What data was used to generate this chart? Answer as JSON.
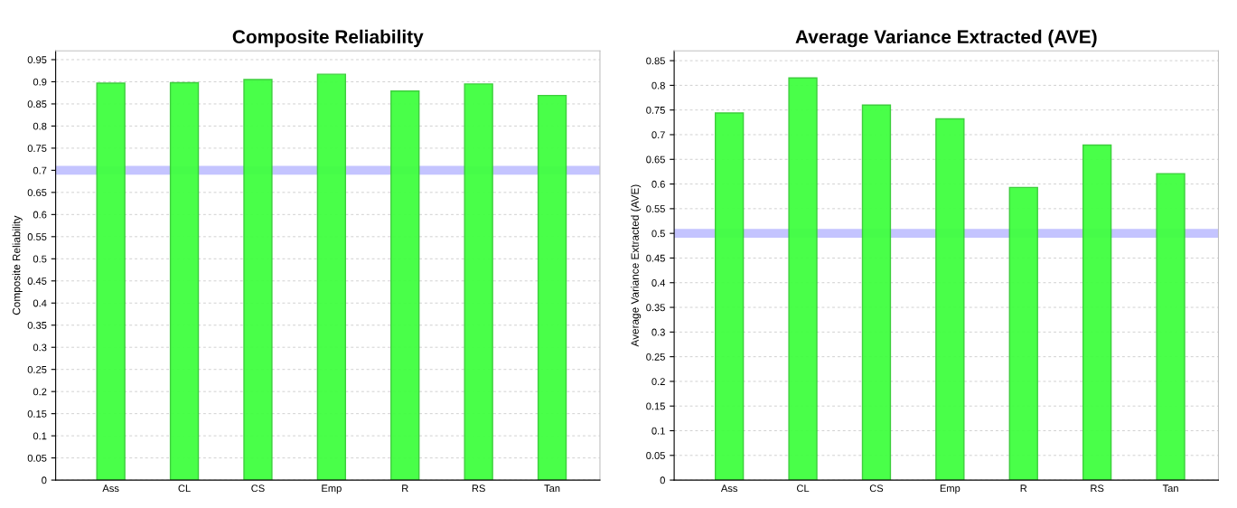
{
  "chart_data": [
    {
      "type": "bar",
      "title": "Composite Reliability",
      "ylabel": "Composite Reliability",
      "categories": [
        "Ass",
        "CL",
        "CS",
        "Emp",
        "R",
        "RS",
        "Tan"
      ],
      "values": [
        0.897,
        0.898,
        0.905,
        0.917,
        0.879,
        0.895,
        0.869
      ],
      "color": "#40ff40",
      "ylim": [
        0,
        0.97
      ],
      "yticks": [
        0,
        0.05,
        0.1,
        0.15,
        0.2,
        0.25,
        0.3,
        0.35,
        0.4,
        0.45,
        0.5,
        0.55,
        0.6,
        0.65,
        0.7,
        0.75,
        0.8,
        0.85,
        0.9,
        0.95
      ],
      "ref_lines": [
        {
          "axis": "y",
          "value": 0.7,
          "color": "#c4c4ff"
        }
      ],
      "grid": "y"
    },
    {
      "type": "bar",
      "title": "Average Variance Extracted (AVE)",
      "ylabel": "Average Variance Extracted (AVE)",
      "categories": [
        "Ass",
        "CL",
        "CS",
        "Emp",
        "R",
        "RS",
        "Tan"
      ],
      "values": [
        0.744,
        0.815,
        0.76,
        0.732,
        0.593,
        0.679,
        0.621
      ],
      "color": "#40ff40",
      "ylim": [
        0,
        0.87
      ],
      "yticks": [
        0,
        0.05,
        0.1,
        0.15,
        0.2,
        0.25,
        0.3,
        0.35,
        0.4,
        0.45,
        0.5,
        0.55,
        0.6,
        0.65,
        0.7,
        0.75,
        0.8,
        0.85
      ],
      "ref_lines": [
        {
          "axis": "y",
          "value": 0.5,
          "color": "#c4c4ff"
        }
      ],
      "grid": "y"
    }
  ]
}
